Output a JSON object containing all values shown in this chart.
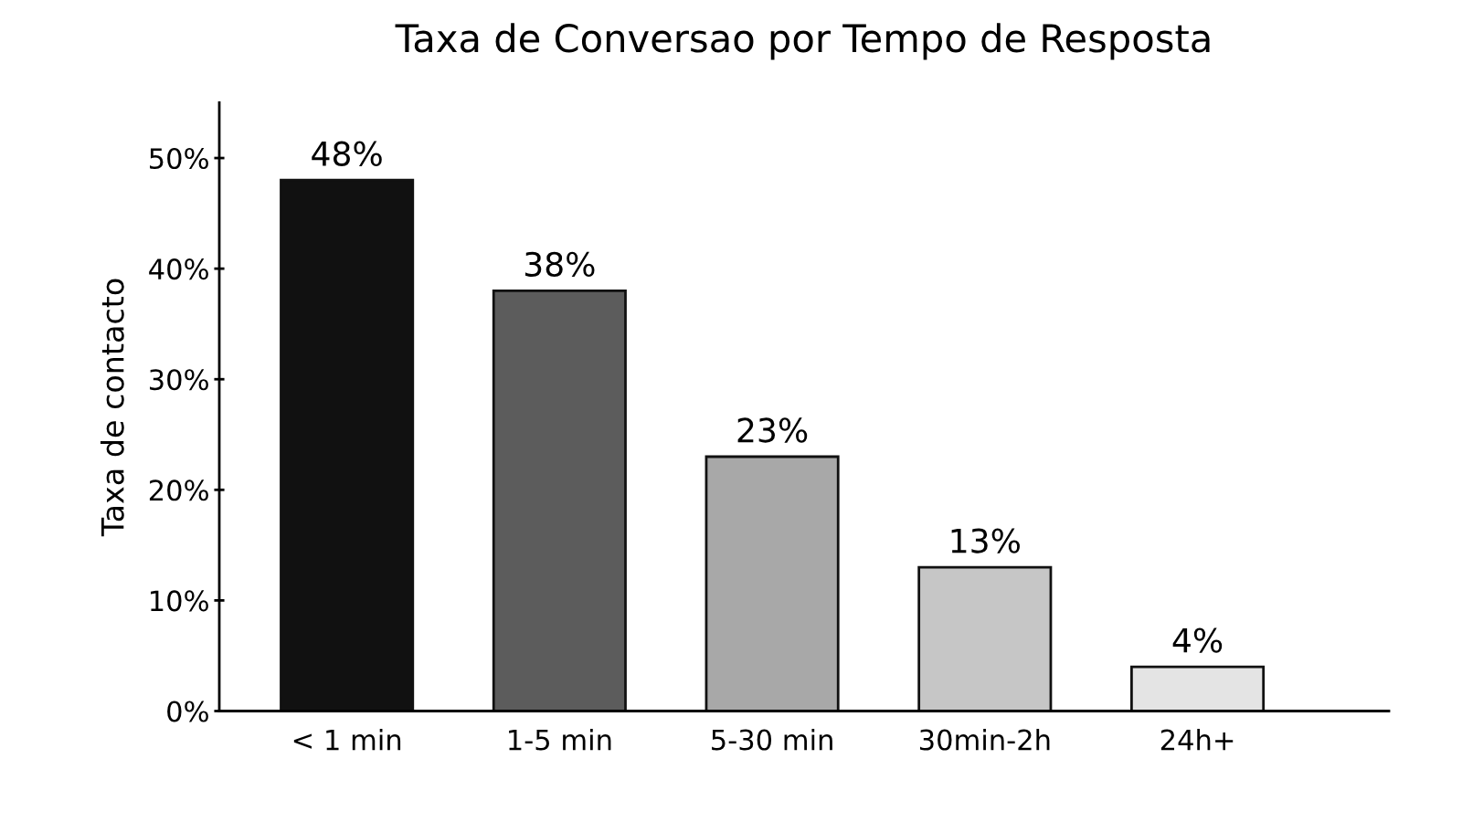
{
  "chart_data": {
    "type": "bar",
    "title": "Taxa de Conversao por Tempo de Resposta",
    "ylabel": "Taxa de contacto",
    "categories": [
      "< 1 min",
      "1-5 min",
      "5-30 min",
      "30min-2h",
      "24h+"
    ],
    "values": [
      48,
      38,
      23,
      13,
      4
    ],
    "colors": [
      "#111111",
      "#5c5c5c",
      "#a8a8a8",
      "#c6c6c6",
      "#e4e4e4"
    ],
    "value_labels": [
      "48%",
      "38%",
      "23%",
      "13%",
      "4%"
    ],
    "ylim": [
      0,
      55
    ],
    "yticks": [
      {
        "value": 0,
        "label": "0%"
      },
      {
        "value": 10,
        "label": "10%"
      },
      {
        "value": 20,
        "label": "20%"
      },
      {
        "value": 30,
        "label": "30%"
      },
      {
        "value": 40,
        "label": "40%"
      },
      {
        "value": 50,
        "label": "50%"
      }
    ],
    "grid": false,
    "legend": false
  }
}
